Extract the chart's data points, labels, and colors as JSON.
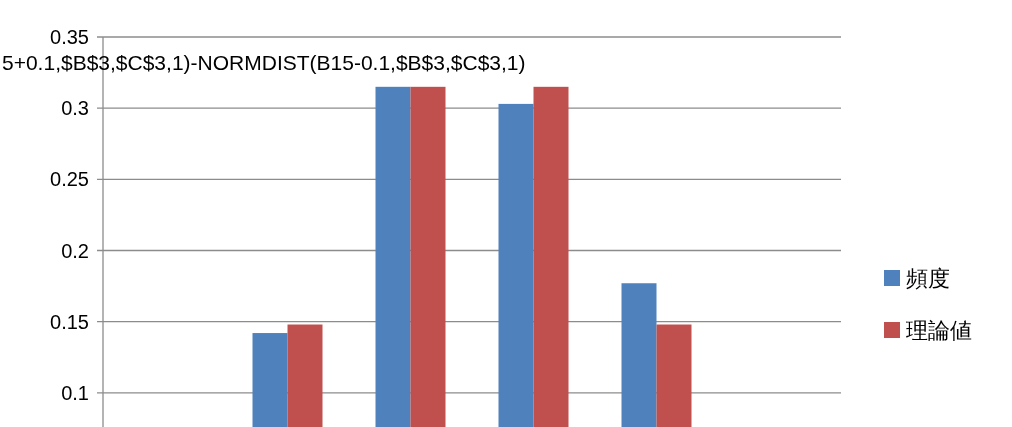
{
  "chart_data": {
    "type": "bar",
    "categories": [
      null,
      null,
      null,
      null,
      null,
      null
    ],
    "series": [
      {
        "name": "頻度",
        "color": "#4f81bd",
        "values": [
          null,
          0.142,
          0.315,
          0.303,
          0.177,
          null
        ]
      },
      {
        "name": "理論値",
        "color": "#c0504d",
        "values": [
          null,
          0.148,
          0.315,
          0.315,
          0.148,
          null
        ]
      }
    ],
    "ylim": [
      0.076,
      0.35
    ],
    "yticks": [
      0.1,
      0.15,
      0.2,
      0.25,
      0.3,
      0.35
    ],
    "grid": "y",
    "legend": "right",
    "annotations": [
      "5+0.1,$B$3,$C$3,1)-NORMDIST(B15-0.1,$B$3,$C$3,1)"
    ]
  }
}
